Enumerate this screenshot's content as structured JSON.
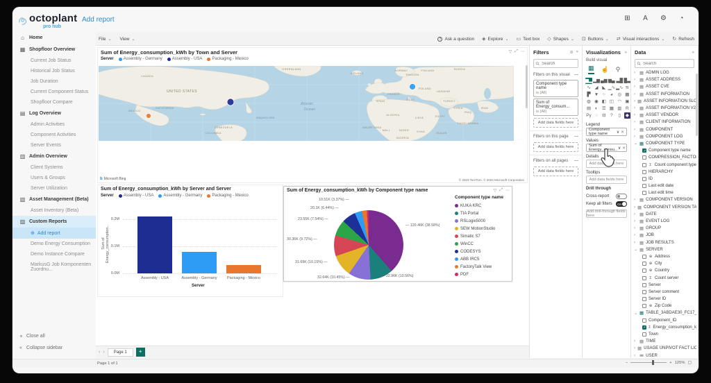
{
  "app": {
    "brand": "octoplant",
    "brand_sub": "pro hub",
    "page_title": "Add report",
    "topbar_icons": [
      {
        "name": "apps-grid-icon",
        "glyph": "⊞"
      },
      {
        "name": "language-icon",
        "glyph": "A"
      },
      {
        "name": "settings-gear-icon",
        "glyph": "⚙"
      },
      {
        "name": "profile-icon",
        "glyph": "◔"
      }
    ]
  },
  "icons": {
    "caret": "⌄",
    "chevron_right": "›",
    "chevron_down": "⌄",
    "collapse": "«",
    "search": "⚲",
    "filter": "▽",
    "focus": "⤢",
    "more": "⋯",
    "erase": "⊘",
    "expand": "»",
    "close": "✕",
    "dropdown": "∨",
    "sigma": "Σ",
    "globe": "⊕",
    "add_circle": "⊕",
    "home": "⌂",
    "minus": "−",
    "plus": "+",
    "fit": "▢",
    "table": "▦",
    "bing_b": "b"
  },
  "sidebar": {
    "items": [
      {
        "label": "Home",
        "icon": "home-icon",
        "glyph": "⌂",
        "children": []
      },
      {
        "label": "Shopfloor Overview",
        "icon": "shopfloor-overview-icon",
        "glyph": "▦",
        "children": [
          {
            "label": "Current Job Status"
          },
          {
            "label": "Historical Job Status"
          },
          {
            "label": "Job Duration"
          },
          {
            "label": "Current Component Status"
          },
          {
            "label": "Shopfloor Compare"
          }
        ]
      },
      {
        "label": "Log Overview",
        "icon": "log-overview-icon",
        "glyph": "▤",
        "children": [
          {
            "label": "Admin Activities"
          },
          {
            "label": "Component Activities"
          },
          {
            "label": "Server Events"
          }
        ]
      },
      {
        "label": "Admin Overview",
        "icon": "admin-overview-icon",
        "glyph": "▥",
        "children": [
          {
            "label": "Client Systems"
          },
          {
            "label": "Users & Groups"
          },
          {
            "label": "Server Utilization"
          }
        ]
      },
      {
        "label": "Asset Management (Beta)",
        "icon": "asset-management-icon",
        "glyph": "▧",
        "children": [
          {
            "label": "Asset Inventory (Beta)"
          }
        ]
      },
      {
        "label": "Custom Reports",
        "icon": "custom-reports-icon",
        "glyph": "▨",
        "active": true,
        "children": [
          {
            "label": "Add report",
            "active": true,
            "icon": "add-report-icon"
          },
          {
            "label": "Demo Energy Consumption"
          },
          {
            "label": "Demo Instance Compare"
          },
          {
            "label": "MarkusG Job Komponenten Zuordnu..."
          }
        ]
      }
    ],
    "footer": [
      {
        "label": "Close all",
        "icon": "close-all-icon"
      },
      {
        "label": "Collapse sidebar",
        "icon": "collapse-sidebar-icon"
      }
    ]
  },
  "menubar": {
    "menus": [
      {
        "label": "File"
      },
      {
        "label": "View"
      }
    ],
    "actions": [
      {
        "label": "Ask a question",
        "icon": "ask-question-icon",
        "glyph": "?",
        "caret": false
      },
      {
        "label": "Explore",
        "icon": "explore-icon",
        "glyph": "◈",
        "caret": true
      },
      {
        "label": "Text box",
        "icon": "text-box-icon",
        "glyph": "▭",
        "caret": false
      },
      {
        "label": "Shapes",
        "icon": "shapes-icon",
        "glyph": "◇",
        "caret": true
      },
      {
        "label": "Buttons",
        "icon": "buttons-icon",
        "glyph": "⊡",
        "caret": true
      },
      {
        "label": "Visual interactions",
        "icon": "visual-interactions-icon",
        "glyph": "⇄",
        "caret": true
      },
      {
        "label": "Refresh",
        "icon": "refresh-icon",
        "glyph": "↻",
        "caret": false
      }
    ]
  },
  "filters": {
    "title": "Filters",
    "search_placeholder": "Search",
    "sections": [
      {
        "title": "Filters on this visual",
        "cards": [
          {
            "name": "Component type name",
            "cond": "is (All)"
          },
          {
            "name": "Sum of Energy_consum...",
            "cond": "is (All)"
          }
        ],
        "add": "Add data fields here"
      },
      {
        "title": "Filters on this page",
        "cards": [],
        "add": "Add data fields here"
      },
      {
        "title": "Filters on all pages",
        "cards": [],
        "add": "Add data fields here"
      }
    ]
  },
  "visualizations": {
    "title": "Visualizations",
    "subtitle": "Build visual",
    "modes": [
      {
        "name": "build-visual-icon",
        "glyph": "▦",
        "selected": true
      },
      {
        "name": "format-visual-icon",
        "glyph": "☝",
        "selected": false
      },
      {
        "name": "analytics-icon",
        "glyph": "⚲",
        "selected": false
      }
    ],
    "visual_types": [
      {
        "name": "stacked-bar-chart-icon",
        "glyph": "▆▂",
        "selected": true
      },
      {
        "name": "clustered-bar-chart-icon",
        "glyph": "▂▆"
      },
      {
        "name": "stacked-column-chart-icon",
        "glyph": "▄▆"
      },
      {
        "name": "clustered-column-chart-icon",
        "glyph": "▆▄"
      },
      {
        "name": "100-stacked-bar-chart-icon",
        "glyph": "▃█"
      },
      {
        "name": "100-stacked-column-chart-icon",
        "glyph": "█▃"
      },
      {
        "name": "line-chart-icon",
        "glyph": "∿"
      },
      {
        "name": "area-chart-icon",
        "glyph": "◢"
      },
      {
        "name": "stacked-area-chart-icon",
        "glyph": "◣"
      },
      {
        "name": "line-and-stacked-column-chart-icon",
        "glyph": "▁∿"
      },
      {
        "name": "line-and-clustered-column-chart-icon",
        "glyph": "▂∿"
      },
      {
        "name": "ribbon-chart-icon",
        "glyph": "≋"
      },
      {
        "name": "waterfall-chart-icon",
        "glyph": "▛"
      },
      {
        "name": "funnel-chart-icon",
        "glyph": "▼"
      },
      {
        "name": "scatter-chart-icon",
        "glyph": "⁘"
      },
      {
        "name": "pie-chart-icon",
        "glyph": "◕"
      },
      {
        "name": "donut-chart-icon",
        "glyph": "◎"
      },
      {
        "name": "treemap-icon",
        "glyph": "▩"
      },
      {
        "name": "map-icon",
        "glyph": "◍"
      },
      {
        "name": "filled-map-icon",
        "glyph": "◉"
      },
      {
        "name": "shape-map-icon",
        "glyph": "◧"
      },
      {
        "name": "azure-map-icon",
        "glyph": "◫"
      },
      {
        "name": "gauge-icon",
        "glyph": "◠"
      },
      {
        "name": "card-icon",
        "glyph": "▣"
      },
      {
        "name": "multi-row-card-icon",
        "glyph": "▤"
      },
      {
        "name": "kpi-icon",
        "glyph": "◐"
      },
      {
        "name": "slicer-icon",
        "glyph": "☰"
      },
      {
        "name": "table-icon",
        "glyph": "▦"
      },
      {
        "name": "matrix-icon",
        "glyph": "▥"
      },
      {
        "name": "r-script-icon",
        "glyph": "R"
      },
      {
        "name": "python-icon",
        "glyph": "Py"
      },
      {
        "name": "key-influencers-icon",
        "glyph": "◌"
      },
      {
        "name": "decomposition-tree-icon",
        "glyph": "⊟"
      },
      {
        "name": "qa-icon",
        "glyph": "?"
      },
      {
        "name": "paginated-report-icon",
        "glyph": "▯"
      },
      {
        "name": "custom-visual-icon",
        "glyph": "◆",
        "dark": true
      }
    ],
    "wells": {
      "legend_label": "Legend",
      "legend_field": "Component type name",
      "values_label": "Values",
      "values_field": "Sum of Energy_consu...",
      "details_label": "Details",
      "details_add": "Add data fields here",
      "tooltips_label": "Tooltips",
      "tooltips_add": "Add data fields here"
    },
    "drill": {
      "title": "Drill through",
      "cross_report_label": "Cross-report",
      "cross_report_state": "off",
      "keep_filters_label": "Keep all filters",
      "keep_filters_state": "On",
      "add_fields": "Add drill-through fields here"
    }
  },
  "data_panel": {
    "title": "Data",
    "search_placeholder": "Search",
    "tree": [
      {
        "k": "t",
        "label": "ADMIN LOG"
      },
      {
        "k": "t",
        "label": "ASSET ADDRESS"
      },
      {
        "k": "t",
        "label": "ASSET CVE"
      },
      {
        "k": "t",
        "label": "ASSET INFORMATION"
      },
      {
        "k": "t",
        "label": "ASSET INFORMATION SLOT"
      },
      {
        "k": "t",
        "label": "ASSET INFORMATION V2"
      },
      {
        "k": "t",
        "label": "ASSET VENDOR"
      },
      {
        "k": "t",
        "label": "CLIENT INFORMATION"
      },
      {
        "k": "t",
        "label": "COMPONENT"
      },
      {
        "k": "t",
        "label": "COMPONENT LOG"
      },
      {
        "k": "t",
        "label": "COMPONENT TYPE",
        "expanded": true,
        "sel": true
      },
      {
        "k": "f",
        "label": "Component type name",
        "checked": true
      },
      {
        "k": "f",
        "label": "COMPRESSION_FACTOR"
      },
      {
        "k": "f",
        "label": "Count component type",
        "badge": "sigma"
      },
      {
        "k": "f",
        "label": "HIERARCHY"
      },
      {
        "k": "f",
        "label": "ID"
      },
      {
        "k": "f",
        "label": "Last edit date"
      },
      {
        "k": "f",
        "label": "Last edit time"
      },
      {
        "k": "t",
        "label": "COMPONENT VERSION"
      },
      {
        "k": "t",
        "label": "COMPONENT VERSION TAG"
      },
      {
        "k": "t",
        "label": "DATE"
      },
      {
        "k": "t",
        "label": "EVENT LOG"
      },
      {
        "k": "t",
        "label": "GROUP"
      },
      {
        "k": "t",
        "label": "JOB"
      },
      {
        "k": "t",
        "label": "JOB RESULTS"
      },
      {
        "k": "t",
        "label": "SERVER",
        "expanded": true
      },
      {
        "k": "f",
        "label": "Address",
        "badge": "globe"
      },
      {
        "k": "f",
        "label": "City",
        "badge": "globe"
      },
      {
        "k": "f",
        "label": "Country",
        "badge": "globe"
      },
      {
        "k": "f",
        "label": "Count server",
        "badge": "sigma"
      },
      {
        "k": "f",
        "label": "Server"
      },
      {
        "k": "f",
        "label": "Server comment"
      },
      {
        "k": "f",
        "label": "Server ID"
      },
      {
        "k": "f",
        "label": "Zip Code",
        "badge": "globe"
      },
      {
        "k": "t",
        "label": "TABLE_3ABDAE30_FC17_42C8_8A6...",
        "expanded": true,
        "sel": true
      },
      {
        "k": "f",
        "label": "Component_ID"
      },
      {
        "k": "f",
        "label": "Energy_consumption_kWh",
        "badge": "sigma",
        "checked": true
      },
      {
        "k": "f",
        "label": "Town"
      },
      {
        "k": "t",
        "label": "TIME"
      },
      {
        "k": "t",
        "label": "USAGE UNPIVOT FACT LICENCE"
      },
      {
        "k": "t",
        "label": "USER"
      }
    ]
  },
  "pages": {
    "prev": "‹",
    "next": "›",
    "tabs": [
      "Page 1"
    ],
    "add_label": "+",
    "status_left": "Page 1 of 1",
    "zoom_level": "125%"
  },
  "chart_data": [
    {
      "type": "map",
      "title": "Sum of Energy_consumption_kWh by Town and Server",
      "legend_title": "Server",
      "legend": [
        {
          "name": "Assembly - Germany",
          "color": "#2E9BF5"
        },
        {
          "name": "Assembly - USA",
          "color": "#1D2C91"
        },
        {
          "name": "Packaging - Mexico",
          "color": "#E8762C"
        }
      ],
      "bubbles": [
        {
          "server": "Assembly - USA",
          "x": 190,
          "y": 52,
          "r": 5,
          "color": "#1D2C91"
        },
        {
          "server": "Assembly - Germany",
          "x": 452,
          "y": 30,
          "r": 4.5,
          "color": "#2E9BF5"
        },
        {
          "server": "Packaging - Mexico",
          "x": 72,
          "y": 72,
          "r": 3.5,
          "color": "#E8762C"
        }
      ],
      "labels": [
        {
          "t": "CANADA",
          "x": 70,
          "y": 16
        },
        {
          "t": "UNITED STATES",
          "x": 120,
          "y": 38,
          "big": true
        },
        {
          "t": "MEXICO",
          "x": 52,
          "y": 66
        },
        {
          "t": "VENEZUELA",
          "x": 180,
          "y": 90
        },
        {
          "t": "COLOMBIA",
          "x": 165,
          "y": 98
        },
        {
          "t": "GREENLAND",
          "x": 278,
          "y": 6
        },
        {
          "t": "ICELAND",
          "x": 372,
          "y": 12
        },
        {
          "t": "NORWAY",
          "x": 436,
          "y": 8
        },
        {
          "t": "SWEDEN",
          "x": 452,
          "y": 14
        },
        {
          "t": "FINLAND",
          "x": 474,
          "y": 8
        },
        {
          "t": "RUSSIA",
          "x": 520,
          "y": 6
        },
        {
          "t": "POLAND",
          "x": 470,
          "y": 34
        },
        {
          "t": "UKRAINE",
          "x": 497,
          "y": 38
        },
        {
          "t": "FRANCE",
          "x": 425,
          "y": 42
        },
        {
          "t": "SPAIN",
          "x": 406,
          "y": 52
        },
        {
          "t": "ITALY",
          "x": 449,
          "y": 50
        },
        {
          "t": "TURKEY",
          "x": 505,
          "y": 52
        },
        {
          "t": "SYRIA",
          "x": 518,
          "y": 62
        },
        {
          "t": "IRAQ",
          "x": 532,
          "y": 68
        },
        {
          "t": "IRAN",
          "x": 556,
          "y": 62
        },
        {
          "t": "SAUDI ARABIA",
          "x": 532,
          "y": 84
        },
        {
          "t": "EGYPT",
          "x": 492,
          "y": 74
        },
        {
          "t": "LIBYA",
          "x": 462,
          "y": 76
        },
        {
          "t": "ALGERIA",
          "x": 424,
          "y": 72
        },
        {
          "t": "MAURITANIA",
          "x": 394,
          "y": 90
        },
        {
          "t": "MALI",
          "x": 414,
          "y": 94
        },
        {
          "t": "NIGER",
          "x": 440,
          "y": 94
        },
        {
          "t": "CHAD",
          "x": 464,
          "y": 96
        },
        {
          "t": "SUDAN",
          "x": 494,
          "y": 98
        },
        {
          "t": "NIGERIA",
          "x": 438,
          "y": 105
        }
      ],
      "ocean_labels": [
        {
          "t": "Atlantic",
          "x": 300,
          "y": 56,
          "big": true
        },
        {
          "t": "Ocean",
          "x": 304,
          "y": 64,
          "big": true
        },
        {
          "t": "Gulf of Mexico",
          "x": 95,
          "y": 62
        },
        {
          "t": "Sargasso Sea",
          "x": 240,
          "y": 76
        }
      ],
      "attribution": "© 2023 TomTom, © 2023 Microsoft Corporation",
      "logo": "Microsoft Bing"
    },
    {
      "type": "bar",
      "title": "Sum of Energy_consumption_kWh by Server and Server",
      "legend_title": "Server",
      "series": [
        {
          "name": "Assembly - USA",
          "color": "#1D2C91",
          "value": 0.21
        },
        {
          "name": "Assembly - Germany",
          "color": "#2E9BF5",
          "value": 0.08
        },
        {
          "name": "Packaging - Mexico",
          "color": "#E8762C",
          "value": 0.03
        }
      ],
      "unit": "M",
      "ylabel": "Sum of Energy_consumption...",
      "xlabel": "Server",
      "yticks": [
        {
          "label": "0.2M",
          "v": 0.2
        },
        {
          "label": "0.1M",
          "v": 0.1
        },
        {
          "label": "0.0M",
          "v": 0.0
        }
      ],
      "ymax": 0.2
    },
    {
      "type": "pie",
      "title": "Sum of Energy_consumption_kWh by Component type name",
      "legend_title": "Component type name",
      "slices": [
        {
          "name": "KUKA KRC",
          "color": "#7A2B8F",
          "pct": 38.58,
          "label": "120.46K (38.58%)"
        },
        {
          "name": "TIA Portal",
          "color": "#1B807C",
          "pct": 10.56,
          "label": "32.96K (10.56%)"
        },
        {
          "name": "RSLogix5000",
          "color": "#8771D6",
          "pct": 10.45,
          "label": "32.64K (10.45%)"
        },
        {
          "name": "SEW MotionStudio",
          "color": "#E3B428",
          "pct": 10.15,
          "label": "31.69K (10.15%)"
        },
        {
          "name": "Simatic S7",
          "color": "#D64554",
          "pct": 9.72,
          "label": "30.36K (9.72%)"
        },
        {
          "name": "WinCC",
          "color": "#2CA548",
          "pct": 7.54,
          "label": "23.55K (7.54%)"
        },
        {
          "name": "CODESYS",
          "color": "#1F2F98",
          "pct": 6.44,
          "label": "20.1K (6.44%)"
        },
        {
          "name": "ABB IRC5",
          "color": "#2E9BF5",
          "pct": 3.37,
          "label": "10.51K (3.37%)"
        },
        {
          "name": "FactoryTalk View",
          "color": "#E8762C",
          "pct": 2.3,
          "label": null
        },
        {
          "name": "PDF",
          "color": "#D6266E",
          "pct": 0.89,
          "label": null
        }
      ]
    }
  ]
}
